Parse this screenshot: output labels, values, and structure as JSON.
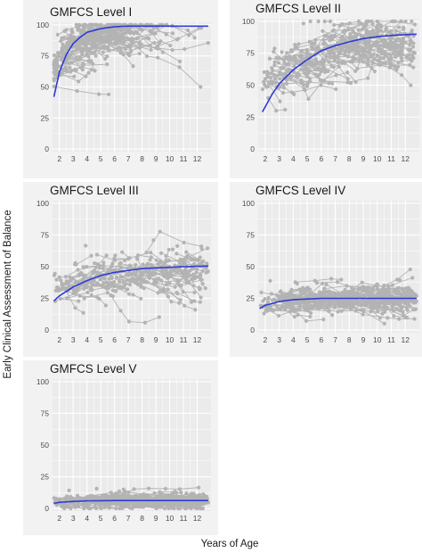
{
  "figure": {
    "ylabel": "Early Clinical Assessment of Balance",
    "xlabel": "Years of Age",
    "colors": {
      "points": "#b3b3b3",
      "fit": "#2d3ad6",
      "panel_bg": "#ebebeb",
      "strip_bg": "#f2f2f2",
      "grid": "#ffffff"
    }
  },
  "chart_data": [
    {
      "type": "scatter",
      "title": "GMFCS Level I",
      "x_ticks": [
        "2",
        "3",
        "4",
        "5",
        "6",
        "7",
        "8",
        "9",
        "10",
        "11",
        "12"
      ],
      "y_ticks": [
        "0",
        "25",
        "50",
        "75",
        "100"
      ],
      "xlim": [
        1.5,
        13
      ],
      "ylim": [
        0,
        100
      ],
      "grid": true,
      "fit": {
        "x": [
          1.6,
          2,
          2.5,
          3,
          3.5,
          4,
          5,
          6,
          7,
          8,
          10,
          12.8
        ],
        "y": [
          42,
          62,
          76,
          85,
          90,
          94,
          97,
          98.5,
          99,
          99,
          99,
          99
        ]
      },
      "points": {
        "count": 260,
        "seed": 11,
        "ages": [
          1.6,
          6.5
        ],
        "dense_age_max": 6.5,
        "mean": 88,
        "spread": 16,
        "min": 38,
        "max": 100
      }
    },
    {
      "type": "scatter",
      "title": "GMFCS Level II",
      "x_ticks": [
        "2",
        "3",
        "4",
        "5",
        "6",
        "7",
        "8",
        "9",
        "10",
        "11",
        "12"
      ],
      "y_ticks": [
        "0",
        "25",
        "50",
        "75",
        "100"
      ],
      "xlim": [
        1.5,
        13
      ],
      "ylim": [
        0,
        100
      ],
      "grid": true,
      "fit": {
        "x": [
          1.8,
          2.5,
          3,
          4,
          5,
          6,
          7,
          8,
          9,
          10,
          11,
          12.8
        ],
        "y": [
          29,
          43,
          51,
          62,
          70,
          77,
          81,
          84,
          86.5,
          88,
          89,
          90
        ]
      },
      "points": {
        "count": 300,
        "seed": 23,
        "ages": [
          1.8,
          12.6
        ],
        "mean": 78,
        "spread": 20,
        "min": 30,
        "max": 100
      }
    },
    {
      "type": "scatter",
      "title": "GMFCS Level III",
      "x_ticks": [
        "2",
        "3",
        "4",
        "5",
        "6",
        "7",
        "8",
        "9",
        "10",
        "11",
        "12"
      ],
      "y_ticks": [
        "0",
        "25",
        "50",
        "75",
        "100"
      ],
      "xlim": [
        1.5,
        13
      ],
      "ylim": [
        0,
        100
      ],
      "grid": true,
      "fit": {
        "x": [
          1.6,
          2,
          3,
          4,
          5,
          6,
          7,
          8,
          9,
          10,
          11,
          12.8
        ],
        "y": [
          23,
          27,
          34,
          39,
          43,
          45.5,
          47,
          48.5,
          49,
          49.5,
          50,
          50.5
        ]
      },
      "points": {
        "count": 220,
        "seed": 37,
        "ages": [
          1.6,
          12.5
        ],
        "mean": 42,
        "spread": 18,
        "min": 5,
        "max": 100
      }
    },
    {
      "type": "scatter",
      "title": "GMFCS Level IV",
      "x_ticks": [
        "2",
        "3",
        "4",
        "5",
        "6",
        "7",
        "8",
        "9",
        "10",
        "11",
        "12"
      ],
      "y_ticks": [
        "0",
        "25",
        "50",
        "75",
        "100"
      ],
      "xlim": [
        1.5,
        13
      ],
      "ylim": [
        0,
        100
      ],
      "grid": true,
      "fit": {
        "x": [
          1.6,
          2,
          3,
          4,
          5,
          6,
          8,
          10,
          12.8
        ],
        "y": [
          17,
          19.5,
          22.5,
          24,
          24.5,
          25,
          25,
          25,
          25
        ]
      },
      "points": {
        "count": 320,
        "seed": 53,
        "ages": [
          1.6,
          12.6
        ],
        "mean": 24,
        "spread": 11,
        "min": 2,
        "max": 72
      }
    },
    {
      "type": "scatter",
      "title": "GMFCS Level V",
      "x_ticks": [
        "2",
        "3",
        "4",
        "5",
        "6",
        "7",
        "8",
        "9",
        "10",
        "11",
        "12"
      ],
      "y_ticks": [
        "0",
        "25",
        "50",
        "75",
        "100"
      ],
      "xlim": [
        1.5,
        13
      ],
      "ylim": [
        0,
        100
      ],
      "grid": true,
      "fit": {
        "x": [
          1.6,
          2,
          3,
          4,
          6,
          8,
          10,
          12.8
        ],
        "y": [
          4,
          4.8,
          5.5,
          6,
          6.2,
          6.2,
          6.2,
          6.2
        ]
      },
      "points": {
        "count": 300,
        "seed": 71,
        "ages": [
          1.6,
          12.6
        ],
        "mean": 5,
        "spread": 6,
        "min": 0,
        "max": 35
      }
    }
  ]
}
